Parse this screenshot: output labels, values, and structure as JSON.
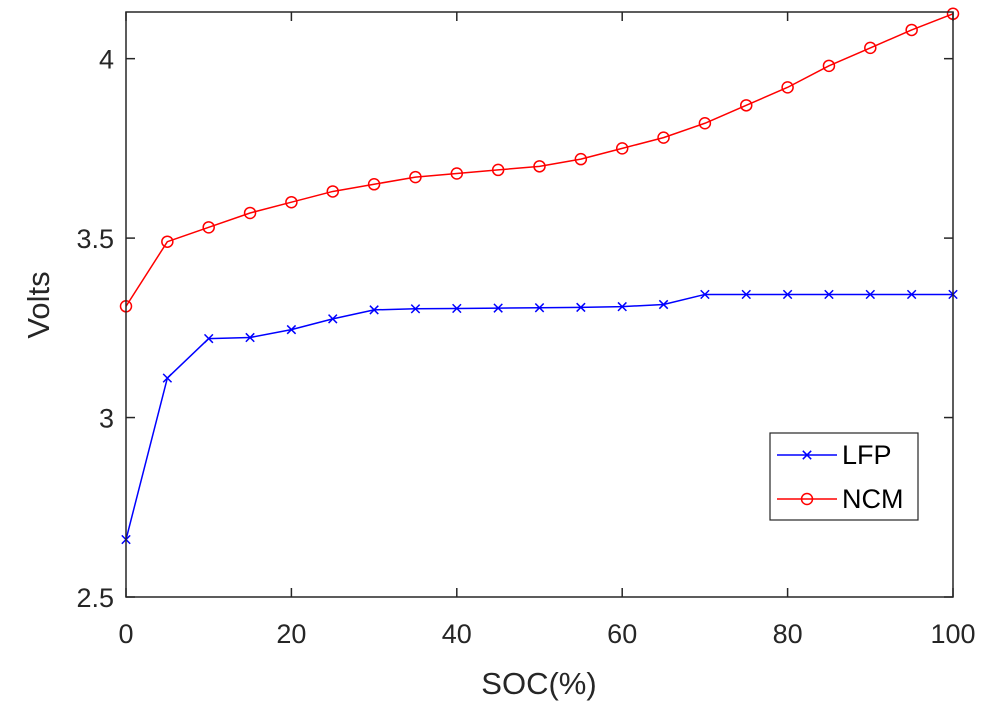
{
  "chart_data": {
    "type": "line",
    "xlabel": "SOC(%)",
    "ylabel": "Volts",
    "xlim": [
      0,
      100
    ],
    "ylim": [
      2.5,
      4.13
    ],
    "xticks": [
      0,
      20,
      40,
      60,
      80,
      100
    ],
    "yticks": [
      2.5,
      3,
      3.5,
      4
    ],
    "xtick_labels": [
      "0",
      "20",
      "40",
      "60",
      "80",
      "100"
    ],
    "ytick_labels": [
      "2.5",
      "3",
      "3.5",
      "4"
    ],
    "grid": false,
    "legend_position": "bottom-right",
    "x": [
      0,
      5,
      10,
      15,
      20,
      25,
      30,
      35,
      40,
      45,
      50,
      55,
      60,
      65,
      70,
      75,
      80,
      85,
      90,
      95,
      100
    ],
    "series": [
      {
        "name": "LFP",
        "color": "#0000ff",
        "marker": "x",
        "values": [
          2.66,
          3.11,
          3.22,
          3.223,
          3.245,
          3.275,
          3.3,
          3.303,
          3.304,
          3.305,
          3.306,
          3.307,
          3.309,
          3.315,
          3.343,
          3.343,
          3.343,
          3.343,
          3.343,
          3.343,
          3.343
        ]
      },
      {
        "name": "NCM",
        "color": "#ff0000",
        "marker": "o",
        "values": [
          3.31,
          3.49,
          3.53,
          3.57,
          3.6,
          3.63,
          3.65,
          3.67,
          3.68,
          3.69,
          3.7,
          3.72,
          3.75,
          3.78,
          3.82,
          3.87,
          3.92,
          3.98,
          4.03,
          4.08,
          4.125
        ]
      }
    ]
  }
}
